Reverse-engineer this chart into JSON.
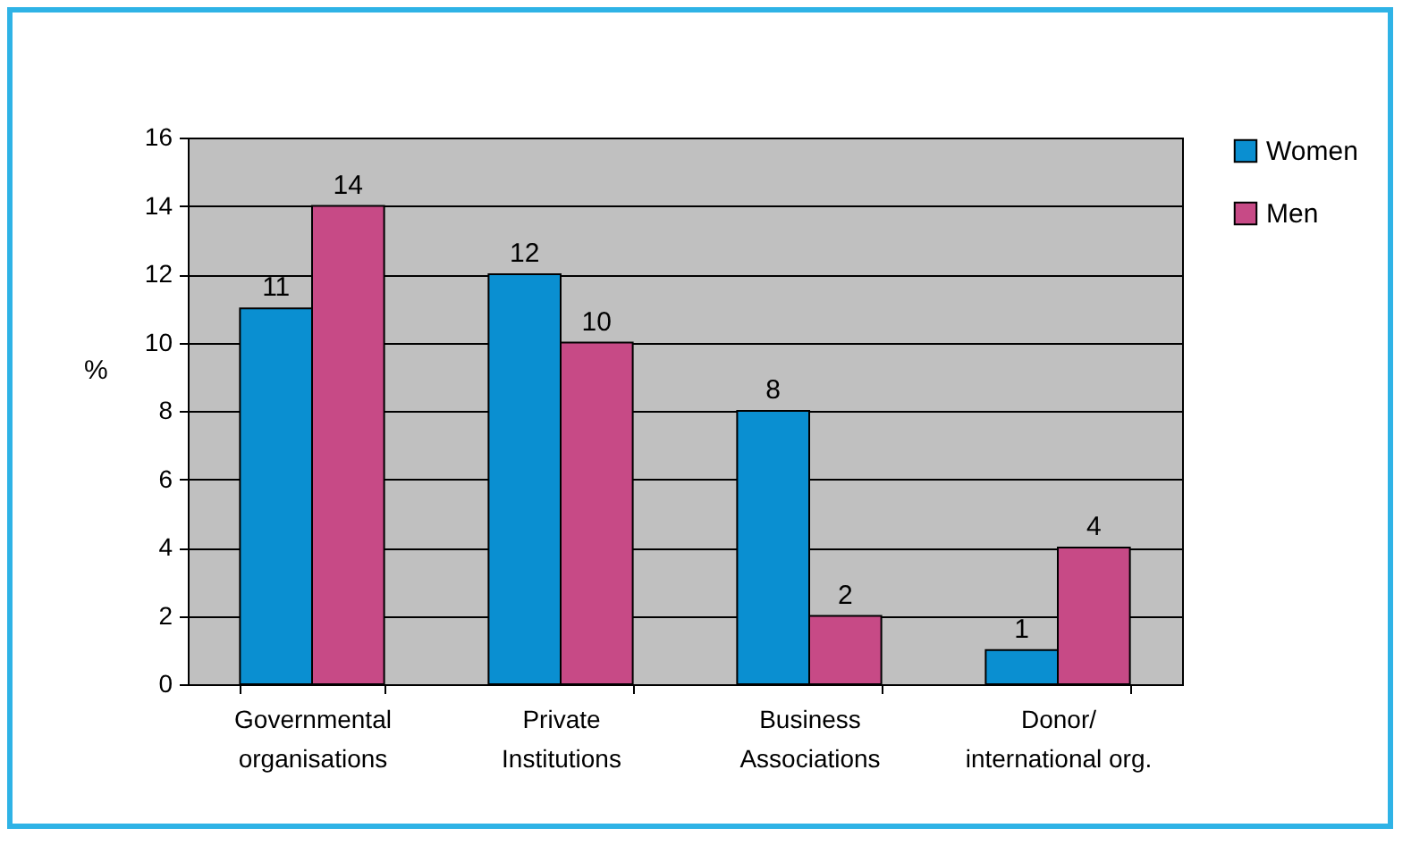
{
  "chart_data": {
    "type": "bar",
    "ylabel": "%",
    "categories": [
      "Governmental organisations",
      "Private Institutions",
      "Business Associations",
      "Donor/ international org."
    ],
    "series": [
      {
        "name": "Women",
        "color": "#0a8fd1",
        "values": [
          11,
          12,
          8,
          1
        ]
      },
      {
        "name": "Men",
        "color": "#c74a86",
        "values": [
          14,
          10,
          2,
          4
        ]
      }
    ],
    "ylim": [
      0,
      16
    ],
    "yticks": [
      0,
      2,
      4,
      6,
      8,
      10,
      12,
      14,
      16
    ],
    "grid": "y",
    "legend": "right",
    "data_labels": true
  }
}
